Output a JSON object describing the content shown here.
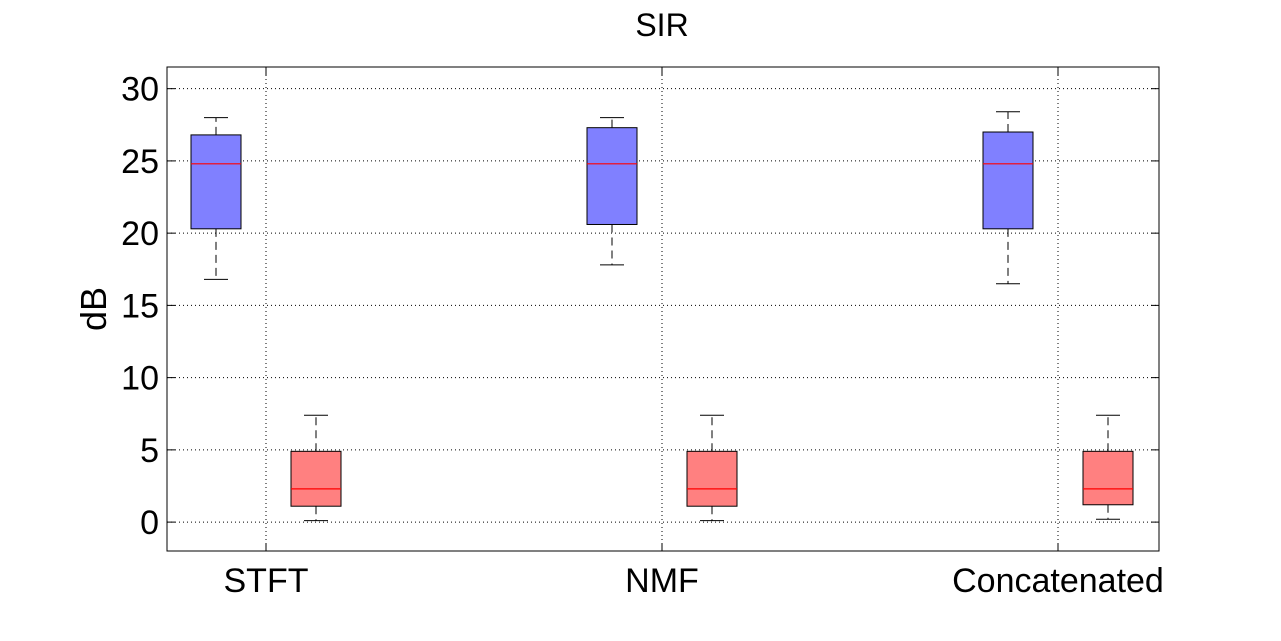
{
  "chart_data": {
    "type": "box",
    "title": "SIR",
    "ylabel": "dB",
    "xlabel": "",
    "ylim": [
      -2,
      31.5
    ],
    "yticks": [
      0,
      5,
      10,
      15,
      20,
      25,
      30
    ],
    "grid": true,
    "categories": [
      "STFT",
      "NMF",
      "Concatenated"
    ],
    "series": [
      {
        "color": "#8080ff",
        "boxes": [
          {
            "whisker_low": 16.8,
            "q1": 20.3,
            "median": 24.8,
            "q3": 26.8,
            "whisker_high": 28.0
          },
          {
            "whisker_low": 17.8,
            "q1": 20.6,
            "median": 24.8,
            "q3": 27.3,
            "whisker_high": 28.0
          },
          {
            "whisker_low": 16.5,
            "q1": 20.3,
            "median": 24.8,
            "q3": 27.0,
            "whisker_high": 28.4
          }
        ]
      },
      {
        "color": "#ff8080",
        "boxes": [
          {
            "whisker_low": 0.1,
            "q1": 1.1,
            "median": 2.3,
            "q3": 4.9,
            "whisker_high": 7.4
          },
          {
            "whisker_low": 0.1,
            "q1": 1.1,
            "median": 2.3,
            "q3": 4.9,
            "whisker_high": 7.4
          },
          {
            "whisker_low": 0.2,
            "q1": 1.2,
            "median": 2.3,
            "q3": 4.9,
            "whisker_high": 7.4
          }
        ]
      }
    ],
    "median_color": "#ff0000"
  }
}
